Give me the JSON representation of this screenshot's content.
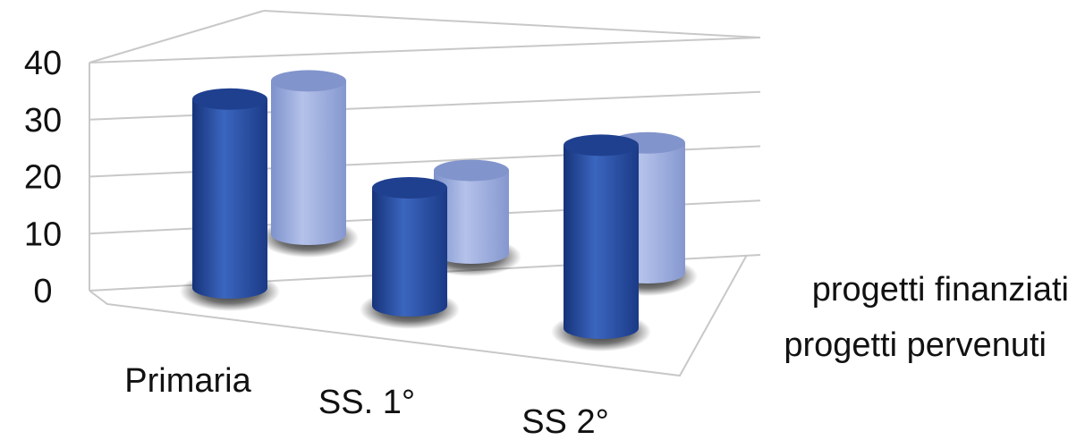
{
  "chart_data": {
    "type": "bar",
    "style": "3d-cylinder",
    "title": "",
    "xlabel": "",
    "ylabel": "",
    "ylim": [
      0,
      40
    ],
    "yticks": [
      0,
      10,
      20,
      30,
      40
    ],
    "grid": true,
    "legend_position": "right",
    "categories": [
      "Primaria",
      "SS. 1°",
      "SS 2°"
    ],
    "series": [
      {
        "name": "progetti pervenuti",
        "values": [
          32,
          20,
          31
        ],
        "color": "#2f5bb0"
      },
      {
        "name": "progetti finanziati",
        "values": [
          26,
          14,
          22
        ],
        "color": "#9aabdc"
      }
    ]
  }
}
